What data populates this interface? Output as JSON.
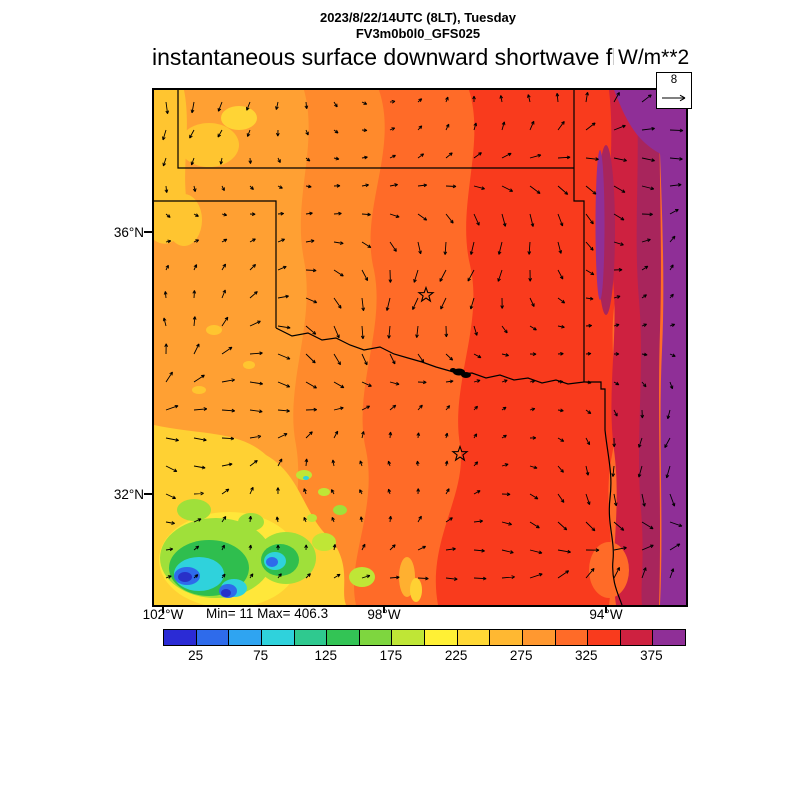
{
  "header": {
    "date_line": "2023/8/22/14UTC (8LT), Tuesday",
    "model_line": "FV3m0b0l0_GFS025",
    "title": "instantaneous surface downward shortwave flux",
    "units": "W/m**2"
  },
  "map": {
    "lat_labels": [
      "36°N",
      "32°N"
    ],
    "lon_labels": [
      "102°W",
      "98°W",
      "94°W"
    ],
    "minmax": "Min= 11 Max= 406.3",
    "wind_ref": "8"
  },
  "chart_data": {
    "type": "heatmap",
    "title": "instantaneous surface downward shortwave flux",
    "units": "W/m**2",
    "model": "FV3m0b0l0_GFS025",
    "valid_time": "2023/8/22/14UTC (8LT), Tuesday",
    "min": 11,
    "max": 406.3,
    "wind_reference_arrow": 8,
    "x_axis": {
      "ticks": [
        "102°W",
        "98°W",
        "94°W"
      ]
    },
    "y_axis": {
      "ticks": [
        "36°N",
        "32°N"
      ]
    },
    "legend_position": "bottom",
    "colorbar": {
      "levels": [
        0,
        25,
        50,
        75,
        100,
        125,
        150,
        175,
        200,
        225,
        250,
        275,
        300,
        325,
        350,
        375,
        400
      ],
      "tick_labels": [
        "25",
        "75",
        "125",
        "175",
        "225",
        "275",
        "325",
        "375"
      ],
      "colors": [
        "#2B2BD5",
        "#2E6BEB",
        "#2FA4F1",
        "#2FD2DC",
        "#2FC98F",
        "#33C455",
        "#7ED63F",
        "#BFE636",
        "#FFF035",
        "#FFD835",
        "#FFB832",
        "#FF9830",
        "#FF6B28",
        "#F93B1D",
        "#CE2140",
        "#8F2F97"
      ]
    },
    "overlay": "wind vectors (arrows), reference = 8",
    "field_estimates": [
      {
        "region": "west edge (~102°W)",
        "flux_w_m2": "250-300"
      },
      {
        "region": "west-central (~100°W)",
        "flux_w_m2": "300-325"
      },
      {
        "region": "central (~98°W)",
        "flux_w_m2": "325-350"
      },
      {
        "region": "east (~95°W)",
        "flux_w_m2": "350-375"
      },
      {
        "region": "east edge (~93°W)",
        "flux_w_m2": "375-400"
      },
      {
        "region": "southwest cloud cluster (~31.2°N, 101°W)",
        "flux_w_m2": "11-150"
      }
    ],
    "star_markers": [
      {
        "approx_lat": 35.1,
        "approx_lon": 97.3
      },
      {
        "approx_lat": 32.6,
        "approx_lon": 96.7
      }
    ]
  }
}
